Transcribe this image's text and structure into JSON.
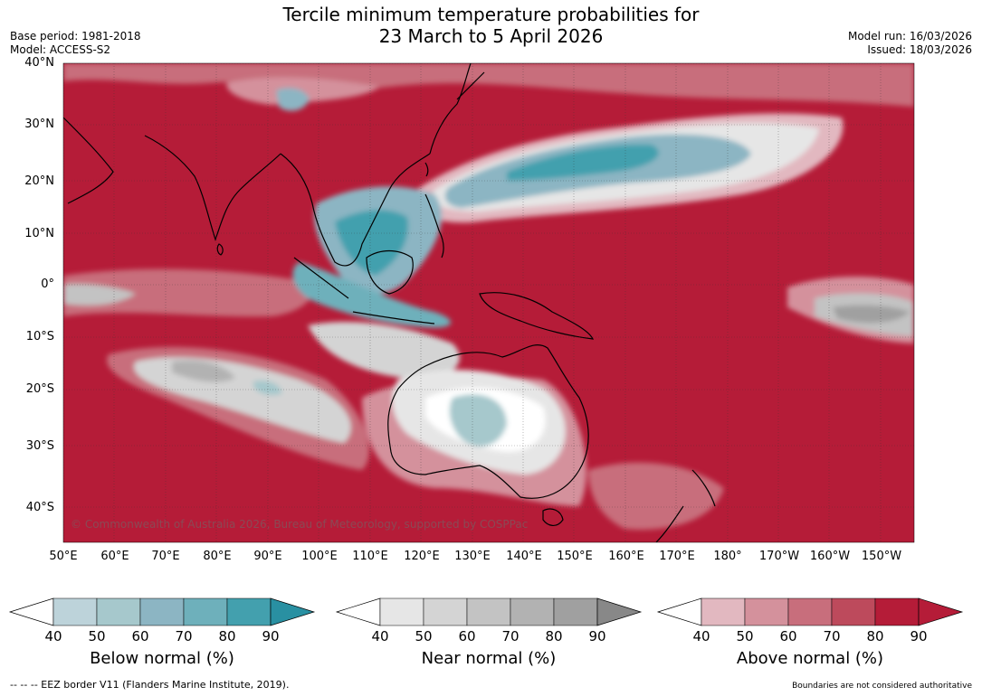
{
  "header": {
    "title_line1": "Tercile minimum temperature probabilities for",
    "title_line2": "23 March to 5 April 2026",
    "base_period": "Base period: 1981-2018",
    "model": "Model: ACCESS-S2",
    "model_run": "Model run: 16/03/2026",
    "issued": "Issued: 18/03/2026"
  },
  "map": {
    "lat_labels": [
      "40°N",
      "30°N",
      "20°N",
      "10°N",
      "0°",
      "10°S",
      "20°S",
      "30°S",
      "40°S"
    ],
    "lon_labels": [
      "50°E",
      "60°E",
      "70°E",
      "80°E",
      "90°E",
      "100°E",
      "110°E",
      "120°E",
      "130°E",
      "140°E",
      "150°E",
      "160°E",
      "170°E",
      "180°",
      "170°W",
      "160°W",
      "150°W"
    ],
    "copyright": "© Commonwealth of Australia 2026, Bureau of Meteorology, supported by COSPPac"
  },
  "colors": {
    "above": [
      "#ffffff",
      "#e2b8c0",
      "#d4919c",
      "#c86e7c",
      "#bd4a5c",
      "#b51c38"
    ],
    "near": [
      "#ffffff",
      "#e6e6e6",
      "#d4d4d4",
      "#c3c3c3",
      "#b2b2b2",
      "#a0a0a0",
      "#888888"
    ],
    "below": [
      "#ffffff",
      "#bdd3da",
      "#a6c8cc",
      "#8cb5c3",
      "#6eb0bb",
      "#43a0ae",
      "#2990a2"
    ]
  },
  "legend": {
    "below": {
      "label": "Below normal (%)",
      "ticks": [
        "40",
        "50",
        "60",
        "70",
        "80",
        "90"
      ]
    },
    "near": {
      "label": "Near normal (%)",
      "ticks": [
        "40",
        "50",
        "60",
        "70",
        "80",
        "90"
      ]
    },
    "above": {
      "label": "Above normal (%)",
      "ticks": [
        "40",
        "50",
        "60",
        "70",
        "80",
        "90"
      ]
    }
  },
  "footer": {
    "eez": "--  --  -- EEZ border V11 (Flanders Marine Institute, 2019).",
    "disclaimer": "Boundaries are not considered authoritative"
  }
}
